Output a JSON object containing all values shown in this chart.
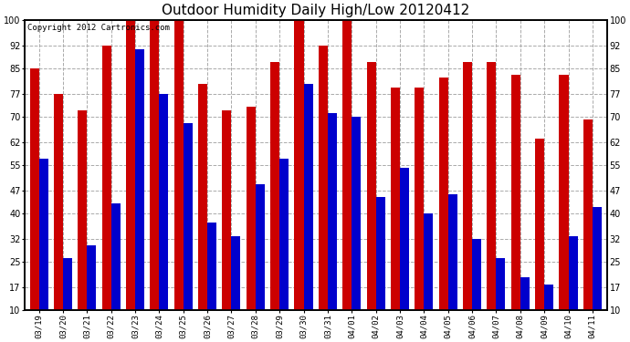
{
  "title": "Outdoor Humidity Daily High/Low 20120412",
  "copyright": "Copyright 2012 Cartronics.com",
  "dates": [
    "03/19",
    "03/20",
    "03/21",
    "03/22",
    "03/23",
    "03/24",
    "03/25",
    "03/26",
    "03/27",
    "03/28",
    "03/29",
    "03/30",
    "03/31",
    "04/01",
    "04/02",
    "04/03",
    "04/04",
    "04/05",
    "04/06",
    "04/07",
    "04/08",
    "04/09",
    "04/10",
    "04/11"
  ],
  "high": [
    85,
    77,
    72,
    92,
    100,
    100,
    100,
    80,
    72,
    73,
    87,
    100,
    92,
    100,
    87,
    79,
    79,
    82,
    87,
    87,
    83,
    63,
    83,
    69
  ],
  "low": [
    57,
    26,
    30,
    43,
    91,
    77,
    68,
    37,
    33,
    49,
    57,
    80,
    71,
    70,
    45,
    54,
    40,
    46,
    32,
    26,
    20,
    18,
    33,
    42
  ],
  "high_color": "#cc0000",
  "low_color": "#0000cc",
  "bg_color": "#ffffff",
  "grid_color": "#aaaaaa",
  "ymin": 10,
  "ymax": 100,
  "yticks": [
    10,
    17,
    25,
    32,
    40,
    47,
    55,
    62,
    70,
    77,
    85,
    92,
    100
  ],
  "title_fontsize": 11,
  "copyright_fontsize": 6.5,
  "bar_width": 0.38,
  "figwidth": 6.9,
  "figheight": 3.75,
  "dpi": 100
}
